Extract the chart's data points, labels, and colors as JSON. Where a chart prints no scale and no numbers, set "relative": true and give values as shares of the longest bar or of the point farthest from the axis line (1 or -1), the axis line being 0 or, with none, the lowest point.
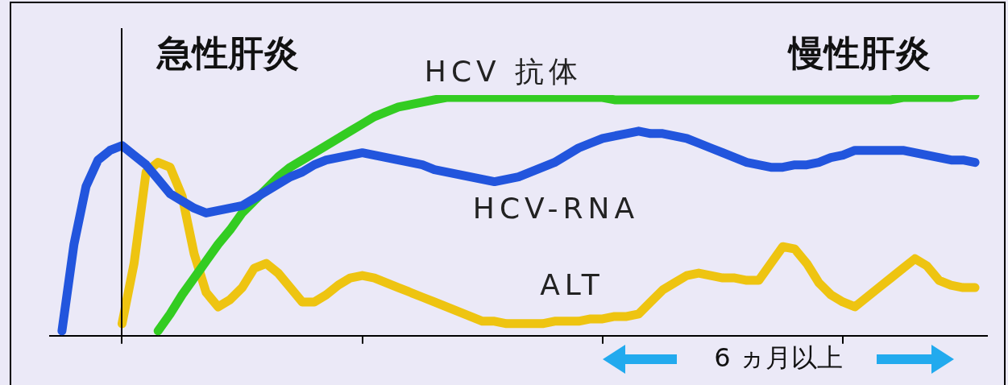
{
  "chart_data": {
    "type": "line",
    "relative": true,
    "marker": "none",
    "line_style": "solid",
    "legend": false,
    "categories": [
      null,
      null,
      null,
      null,
      null,
      null,
      null,
      null,
      null,
      null,
      null,
      null,
      null,
      null,
      null,
      null,
      null,
      null,
      null,
      null,
      null,
      null,
      null,
      null,
      null,
      null,
      null,
      null,
      null,
      null,
      null,
      null,
      null,
      null,
      null,
      null,
      null,
      null,
      null,
      null,
      null,
      null,
      null,
      null,
      null,
      null,
      null,
      null,
      null,
      null,
      null,
      null,
      null,
      null,
      null,
      null,
      null,
      null,
      null,
      null,
      null,
      null,
      null,
      null,
      null,
      null,
      null,
      null,
      null,
      null,
      null,
      null,
      null,
      null,
      null,
      null,
      null,
      null,
      null
    ],
    "annotations": [
      "急性肝炎",
      "慢性肝炎",
      "6 ヵ月以上"
    ],
    "series": [
      {
        "name": "HCV-RNA",
        "color": "#2255dd",
        "values": [
          null,
          0.02,
          0.38,
          0.62,
          0.73,
          0.77,
          0.79,
          0.75,
          0.71,
          0.65,
          0.59,
          0.56,
          0.53,
          0.51,
          0.52,
          0.53,
          0.54,
          0.57,
          0.6,
          0.63,
          0.66,
          0.68,
          0.71,
          0.73,
          0.74,
          0.75,
          0.76,
          0.75,
          0.74,
          0.73,
          0.72,
          0.71,
          0.69,
          0.68,
          0.67,
          0.66,
          0.65,
          0.64,
          0.65,
          0.66,
          0.68,
          0.7,
          0.72,
          0.75,
          0.78,
          0.8,
          0.82,
          0.83,
          0.84,
          0.85,
          0.84,
          0.84,
          0.83,
          0.82,
          0.8,
          0.78,
          0.76,
          0.74,
          0.72,
          0.71,
          0.7,
          0.7,
          0.71,
          0.71,
          0.72,
          0.74,
          0.75,
          0.77,
          0.77,
          0.77,
          0.77,
          0.77,
          0.76,
          0.75,
          0.74,
          0.73,
          0.73,
          0.72,
          null
        ]
      },
      {
        "name": "HCV 抗体",
        "color": "#33cc22",
        "values": [
          null,
          null,
          null,
          null,
          null,
          null,
          null,
          null,
          null,
          0.02,
          0.09,
          0.17,
          0.24,
          0.31,
          0.38,
          0.44,
          0.51,
          0.56,
          0.61,
          0.66,
          0.7,
          0.73,
          0.76,
          0.79,
          0.82,
          0.85,
          0.88,
          0.91,
          0.93,
          0.95,
          0.96,
          0.97,
          0.98,
          0.99,
          0.99,
          0.99,
          0.99,
          0.99,
          0.99,
          0.99,
          0.99,
          0.99,
          0.99,
          0.99,
          0.99,
          0.99,
          0.99,
          0.98,
          0.98,
          0.98,
          0.98,
          0.98,
          0.98,
          0.98,
          0.98,
          0.98,
          0.98,
          0.98,
          0.98,
          0.98,
          0.98,
          0.98,
          0.98,
          0.98,
          0.98,
          0.98,
          0.98,
          0.98,
          0.98,
          0.98,
          0.98,
          0.99,
          0.99,
          0.99,
          0.99,
          0.99,
          1,
          1,
          null
        ]
      },
      {
        "name": "ALT",
        "color": "#eec411",
        "values": [
          null,
          null,
          null,
          null,
          null,
          null,
          0.05,
          0.3,
          0.68,
          0.72,
          0.7,
          0.58,
          0.34,
          0.18,
          0.12,
          0.15,
          0.2,
          0.28,
          0.3,
          0.26,
          0.2,
          0.14,
          0.14,
          0.17,
          0.21,
          0.24,
          0.25,
          0.24,
          0.22,
          0.2,
          0.18,
          0.16,
          0.14,
          0.12,
          0.1,
          0.08,
          0.06,
          0.06,
          0.05,
          0.05,
          0.05,
          0.05,
          0.06,
          0.06,
          0.06,
          0.07,
          0.07,
          0.08,
          0.08,
          0.09,
          0.14,
          0.19,
          0.22,
          0.25,
          0.26,
          0.25,
          0.24,
          0.24,
          0.23,
          0.23,
          0.3,
          0.37,
          0.36,
          0.3,
          0.22,
          0.17,
          0.14,
          0.12,
          0.16,
          0.2,
          0.24,
          0.28,
          0.32,
          0.29,
          0.23,
          0.21,
          0.2,
          0.2,
          null
        ]
      }
    ]
  }
}
